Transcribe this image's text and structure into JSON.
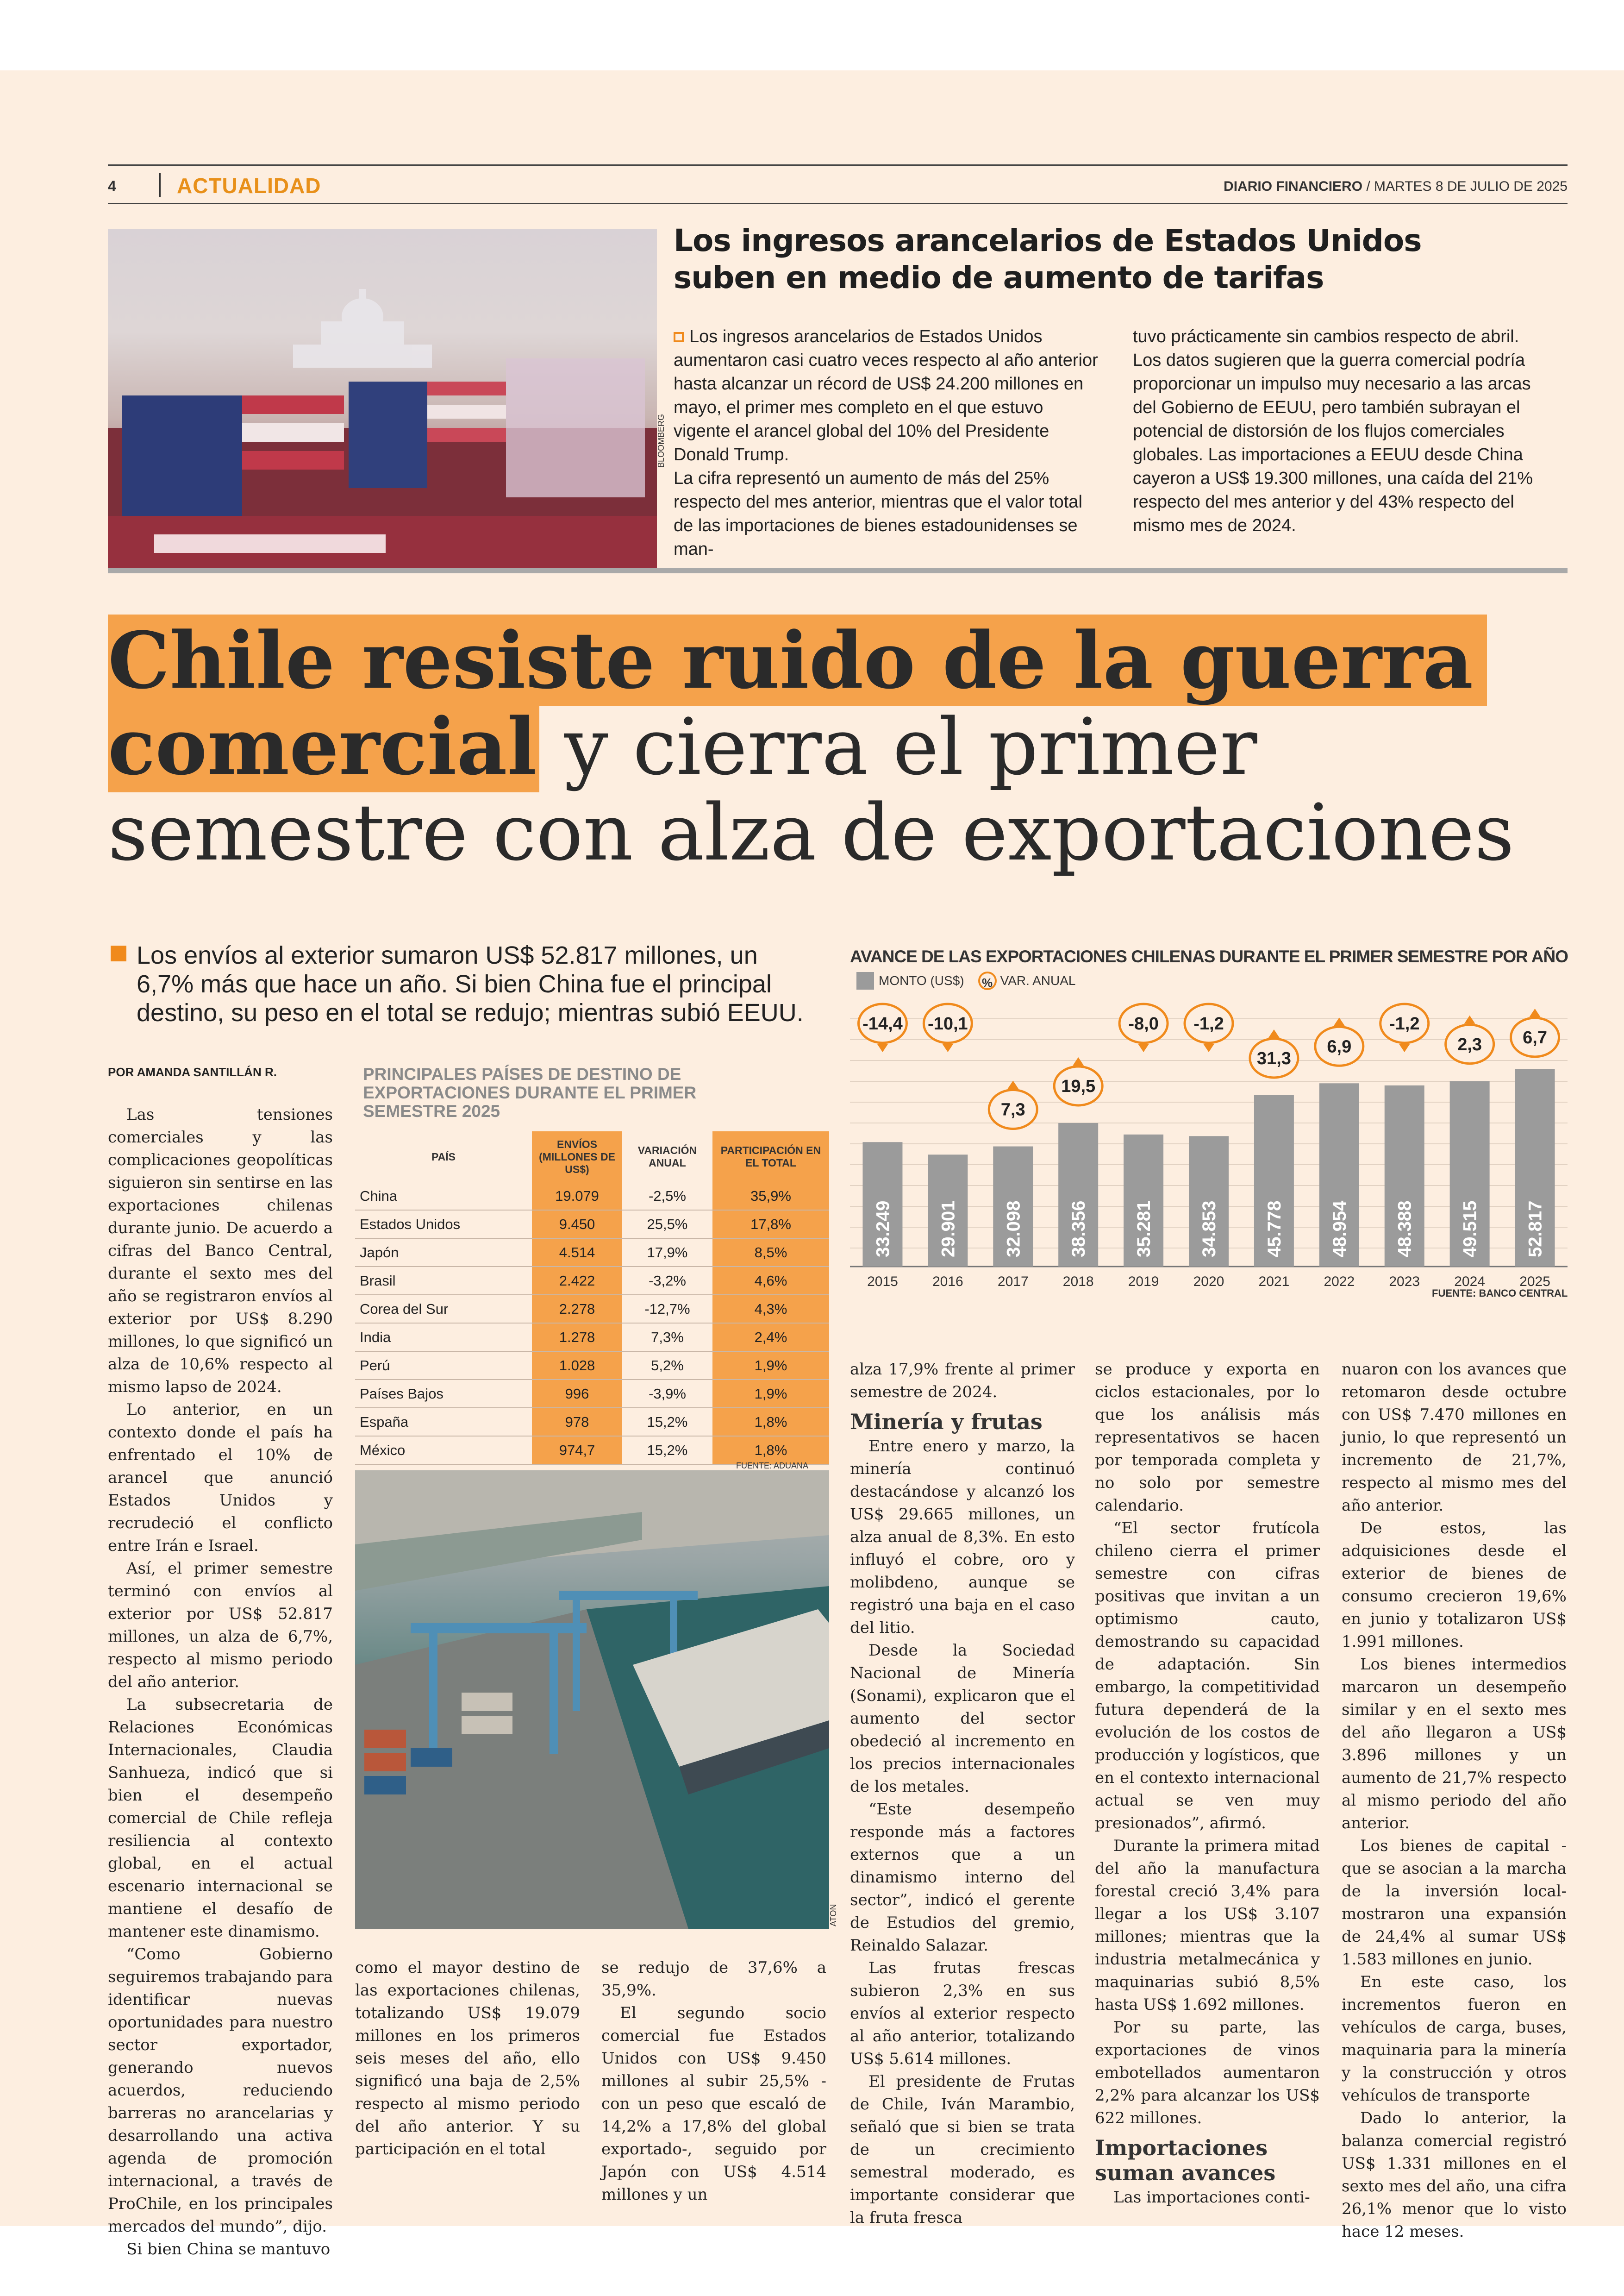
{
  "header": {
    "page_number": "4",
    "section": "ACTUALIDAD",
    "publication": "DIARIO FINANCIERO",
    "date": "/ MARTES 8 DE JULIO DE 2025"
  },
  "top_story": {
    "title_line1": "Los ingresos arancelarios de Estados Unidos",
    "title_line2": "suben en medio de aumento de tarifas",
    "photo_credit": "BLOOMBERG",
    "col1": "Los ingresos arancelarios de Estados Unidos aumentaron casi cuatro veces respecto al año anterior hasta alcanzar un récord de US$ 24.200 millones en mayo, el primer mes completo en el que estuvo vigente el arancel global del 10% del Presidente Donald Trump.",
    "col1b": "La cifra representó un aumento de más del 25% respecto del mes anterior, mientras que el valor total de las importaciones de bienes estadounidenses se man-",
    "col2": "tuvo prácticamente sin cambios respecto de abril. Los datos sugieren que la guerra comercial podría proporcionar un impulso muy necesario a las arcas del Gobierno de EEUU, pero también subrayan el potencial de distorsión de los flujos comerciales globales. Las importaciones a EEUU desde China cayeron a US$ 19.300 millones, una caída del 21% respecto del mes anterior y del 43% respecto del mismo mes de 2024."
  },
  "main_story": {
    "headline_hl1": "Chile resiste ruido de la guerra",
    "headline_hl2": "comercial",
    "headline_rest2": " y cierra el primer",
    "headline_line3": "semestre con alza de exportaciones",
    "lead": "Los envíos al exterior sumaron US$ 52.817 millones, un 6,7% más que hace un año. Si bien China fue el principal destino, su peso en el total se redujo; mientras subió EEUU.",
    "byline": "POR AMANDA SANTILLÁN R.",
    "photo_credit": "ATON",
    "col1": [
      "Las tensiones comerciales y las complicaciones geopolíticas siguieron sin sentirse en las exportaciones chilenas durante junio. De acuerdo a cifras del Banco Central, durante el sexto mes del año se registraron envíos al exterior por US$ 8.290 millones, lo que significó un alza de 10,6% respecto al mismo lapso de 2024.",
      "Lo anterior, en un contexto donde el país ha enfrentado el 10% de arancel que anunció Estados Unidos y recrudeció el conflicto entre Irán e Israel.",
      "Así, el primer semestre terminó con envíos al exterior por US$ 52.817 millones, un alza de 6,7%, respecto al mismo periodo del año anterior.",
      "La subsecretaria de Relaciones Económicas Internacionales, Claudia Sanhueza, indicó que si bien el desempeño comercial de Chile refleja resiliencia al contexto global, en el actual escenario internacional se mantiene el desafío de mantener este dinamismo.",
      "“Como Gobierno seguiremos trabajando para identificar nuevas oportunidades para nuestro sector exportador, generando nuevos acuerdos, reduciendo barreras no arancelarias y desarrollando una activa agenda de promoción internacional, a través de ProChile, en los principales mercados del mundo”, dijo.",
      "Si bien China se mantuvo"
    ],
    "col2": "como el mayor destino de las exportaciones chilenas, totalizando US$ 19.079 millones en los primeros seis meses del año, ello significó una baja de 2,5% respecto al mismo periodo del año anterior. Y su participación en el total",
    "col3": [
      "se redujo de 37,6% a 35,9%.",
      "El segundo socio comercial fue Estados Unidos con US$ 9.450 millones al subir 25,5% -con un peso que escaló de 14,2% a 17,8% del global exportado-, seguido por Japón con US$ 4.514 millones y un"
    ],
    "col4": [
      "alza 17,9% frente al primer semestre de 2024."
    ],
    "col4_sub": "Minería y frutas",
    "col4b": [
      "Entre enero y marzo, la minería continuó destacándose y alcanzó los US$ 29.665 millones, un alza anual de 8,3%. En esto influyó el cobre, oro y molibdeno, aunque se registró una baja en el caso del litio.",
      "Desde la Sociedad Nacional de Minería (Sonami), explicaron que el aumento del sector obedeció al incremento en los precios internacionales de los metales.",
      "“Este desempeño responde más a factores externos que a un dinamismo interno del sector”, indicó el gerente de Estudios del gremio, Reinaldo Salazar.",
      "Las frutas frescas subieron 2,3% en sus envíos al exterior respecto al año anterior, totalizando US$ 5.614 millones.",
      "El presidente de Frutas de Chile, Iván Marambio, señaló que si bien se trata de un crecimiento semestral moderado, es importante considerar que la fruta fresca"
    ],
    "col5": [
      "se produce y exporta en ciclos estacionales, por lo que los análisis más representativos se hacen por temporada completa y no solo por semestre calendario.",
      "“El sector frutícola chileno cierra el primer semestre con cifras positivas que invitan a un optimismo cauto, demostrando su capacidad de adaptación. Sin embargo, la competitividad futura dependerá de la evolución de los costos de producción y logísticos, que en el contexto internacional actual se ven muy presionados”, afirmó.",
      "Durante la primera mitad del año la manufactura forestal creció 3,4% para llegar a los US$ 3.107 millones; mientras que la industria metalmecánica y maquinarias subió 8,5% hasta US$ 1.692 millones.",
      "Por su parte, las exportaciones de vinos embotellados aumentaron 2,2% para alcanzar los US$ 622 millones."
    ],
    "col5_sub": "Importaciones suman avances",
    "col5b": "Las importaciones conti-",
    "col6": [
      "nuaron con los avances que retomaron desde octubre con US$ 7.470 millones en junio, lo que representó un incremento de 21,7%, respecto al mismo mes del año anterior.",
      "De estos, las adquisiciones desde el exterior de bienes de consumo crecieron 19,6% en junio y totalizaron US$ 1.991 millones.",
      "Los bienes intermedios marcaron un desempeño similar y en el sexto mes del año llegaron a US$ 3.896 millones y un aumento de 21,7% respecto al mismo periodo del año anterior.",
      "Los bienes de capital -que se asocian a la marcha de la inversión local- mostraron una expansión de 24,4% al sumar US$ 1.583 millones en junio.",
      "En este caso, los incrementos fueron en vehículos de carga, buses, maquinaria para la minería y la construcción y otros vehículos de transporte",
      "Dado lo anterior, la balanza comercial registró US$ 1.331 millones en el sexto mes del año, una cifra 26,1% menor que lo visto hace 12 meses."
    ]
  },
  "table": {
    "title": "PRINCIPALES PAÍSES DE DESTINO DE EXPORTACIONES DURANTE EL PRIMER SEMESTRE 2025",
    "headers": [
      "PAÍS",
      "ENVÍOS (MILLONES DE US$)",
      "VARIACIÓN ANUAL",
      "PARTICIPACIÓN EN EL TOTAL"
    ],
    "rows": [
      [
        "China",
        "19.079",
        "-2,5%",
        "35,9%"
      ],
      [
        "Estados Unidos",
        "9.450",
        "25,5%",
        "17,8%"
      ],
      [
        "Japón",
        "4.514",
        "17,9%",
        "8,5%"
      ],
      [
        "Brasil",
        "2.422",
        "-3,2%",
        "4,6%"
      ],
      [
        "Corea del Sur",
        "2.278",
        "-12,7%",
        "4,3%"
      ],
      [
        "India",
        "1.278",
        "7,3%",
        "2,4%"
      ],
      [
        "Perú",
        "1.028",
        "5,2%",
        "1,9%"
      ],
      [
        "Países Bajos",
        "996",
        "-3,9%",
        "1,9%"
      ],
      [
        "España",
        "978",
        "15,2%",
        "1,8%"
      ],
      [
        "México",
        "974,7",
        "15,2%",
        "1,8%"
      ]
    ],
    "source": "FUENTE: ADUANA",
    "highlight_color": "#f5a24b"
  },
  "chart_data": {
    "type": "bar",
    "title": "AVANCE DE LAS EXPORTACIONES CHILENAS DURANTE EL PRIMER SEMESTRE POR AÑO",
    "legend_amount": "MONTO (US$)",
    "legend_pct_symbol": "%",
    "legend_var": "VAR. ANUAL",
    "categories": [
      "2015",
      "2016",
      "2017",
      "2018",
      "2019",
      "2020",
      "2021",
      "2022",
      "2023",
      "2024",
      "2025"
    ],
    "value_labels": [
      "33.249",
      "29.901",
      "32.098",
      "38.356",
      "35.281",
      "34.853",
      "45.778",
      "48.954",
      "48.388",
      "49.515",
      "52.817"
    ],
    "values": [
      33249,
      29901,
      32098,
      38356,
      35281,
      34853,
      45778,
      48954,
      48388,
      49515,
      52817
    ],
    "variation_labels": [
      "-14,4",
      "-10,1",
      "7,3",
      "19,5",
      "-8,0",
      "-1,2",
      "31,3",
      "6,9",
      "-1,2",
      "2,3",
      "6,7"
    ],
    "variation": [
      -14.4,
      -10.1,
      7.3,
      19.5,
      -8.0,
      -1.2,
      31.3,
      6.9,
      -1.2,
      2.3,
      6.7
    ],
    "source": "FUENTE: BANCO CENTRAL",
    "bar_color": "#9b9b9b",
    "accent_color": "#f08a1c"
  }
}
